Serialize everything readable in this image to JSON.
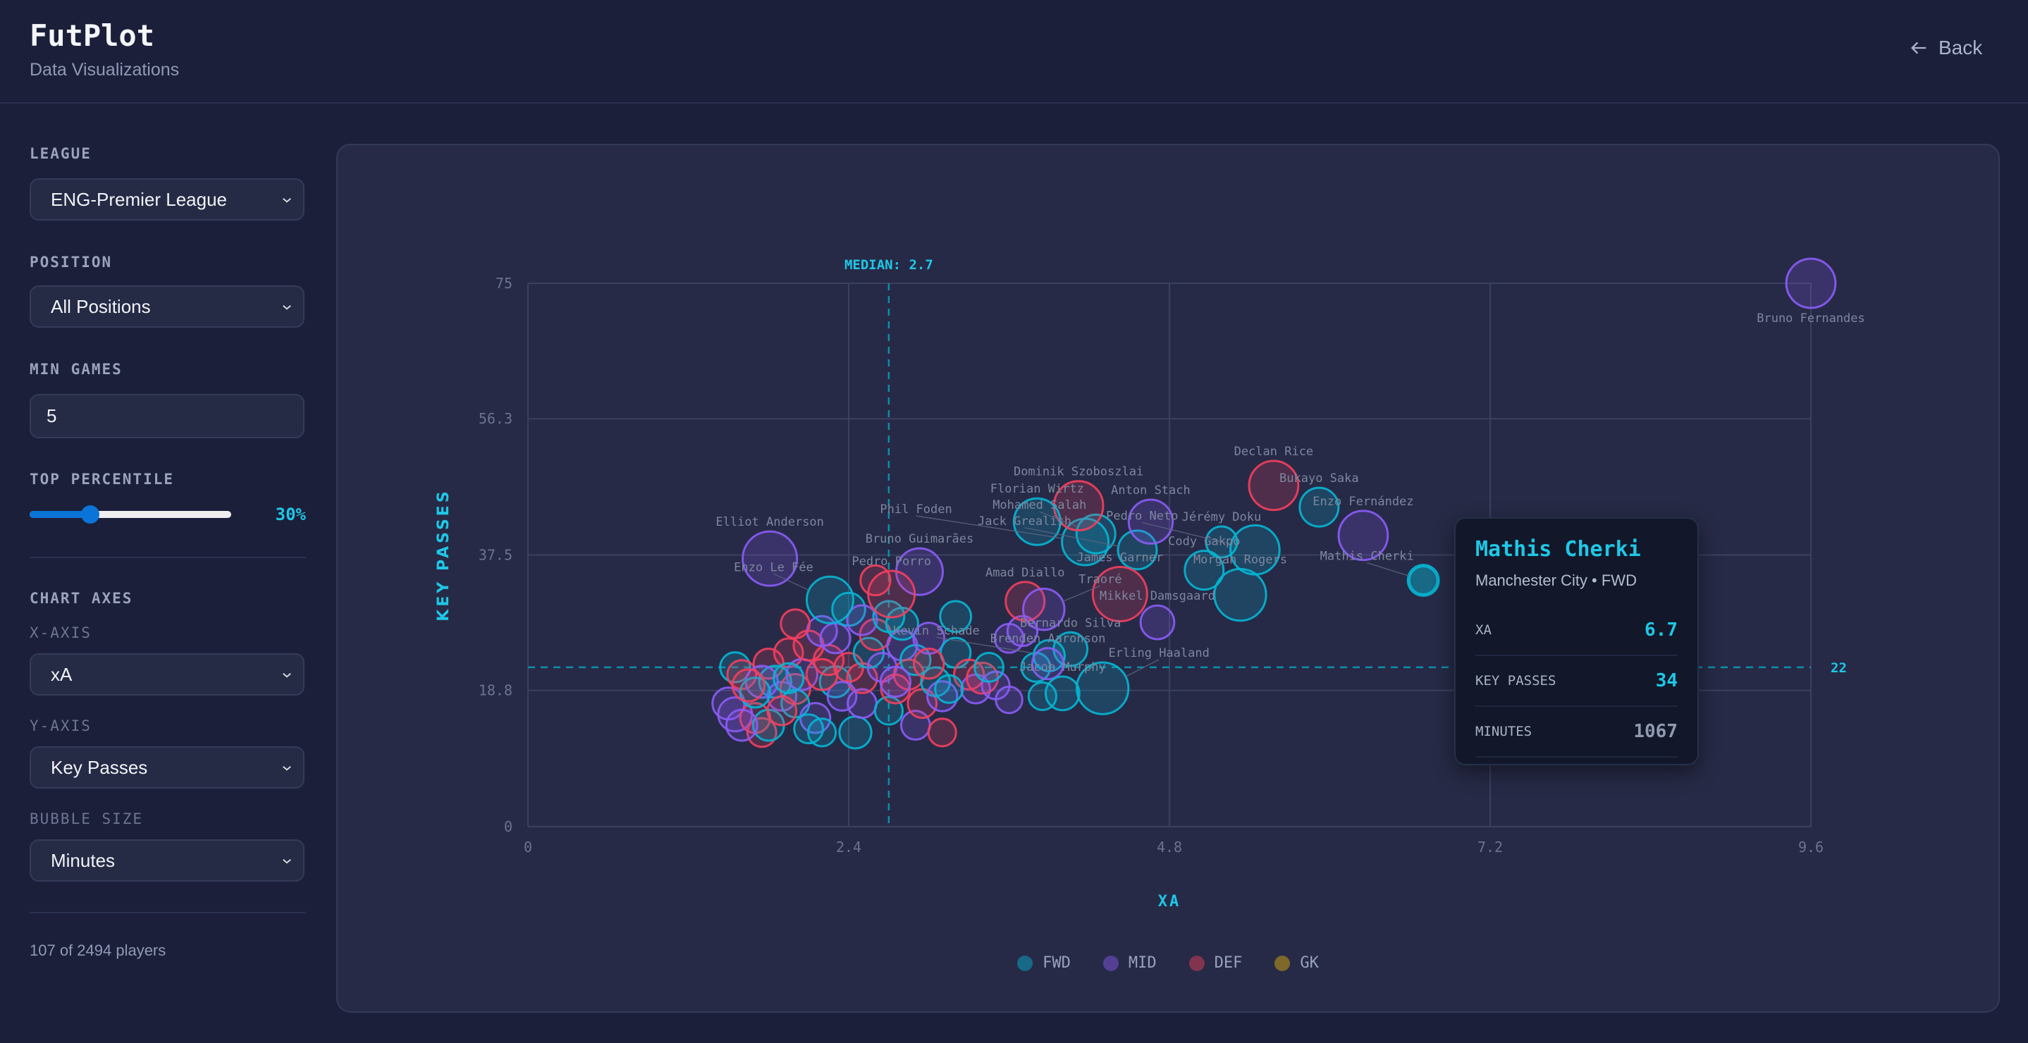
{
  "header": {
    "title": "FutPlot",
    "subtitle": "Data Visualizations",
    "back_label": "Back"
  },
  "sidebar": {
    "league_label": "LEAGUE",
    "league_value": "ENG-Premier League",
    "position_label": "POSITION",
    "position_value": "All Positions",
    "min_games_label": "MIN GAMES",
    "min_games_value": "5",
    "percentile_label": "TOP PERCENTILE",
    "percentile_value": 30,
    "percentile_text": "30%",
    "axes_label": "CHART AXES",
    "x_axis_label": "X-AXIS",
    "x_axis_value": "xA",
    "y_axis_label": "Y-AXIS",
    "y_axis_value": "Key Passes",
    "bubble_label": "BUBBLE SIZE",
    "bubble_value": "Minutes",
    "count_text": "107 of 2494 players"
  },
  "colors": {
    "FWD": "#06b6d4",
    "MID": "#8b5cf6",
    "DEF": "#f43f5e",
    "GK": "#eab308",
    "accent": "#1fc7e6"
  },
  "legend": [
    {
      "key": "FWD",
      "label": "FWD"
    },
    {
      "key": "MID",
      "label": "MID"
    },
    {
      "key": "DEF",
      "label": "DEF"
    },
    {
      "key": "GK",
      "label": "GK"
    }
  ],
  "tooltip": {
    "name": "Mathis Cherki",
    "meta": "Manchester City • FWD",
    "rows": [
      {
        "k": "XA",
        "v": "6.7"
      },
      {
        "k": "KEY PASSES",
        "v": "34"
      },
      {
        "k": "MINUTES",
        "v": "1067"
      }
    ]
  },
  "chart_data": {
    "type": "scatter",
    "xlabel": "XA",
    "ylabel": "KEY PASSES",
    "xlim": [
      0,
      9.6
    ],
    "ylim": [
      0,
      75
    ],
    "xticks": [
      "0",
      "2.4",
      "4.8",
      "7.2",
      "9.6"
    ],
    "yticks": [
      "0",
      "18.8",
      "37.5",
      "56.3",
      "75"
    ],
    "grid": true,
    "median_x": {
      "value": 2.7,
      "label": "MEDIAN: 2.7"
    },
    "median_y": {
      "value": 22,
      "label": "22"
    },
    "highlighted": "Mathis Cherki",
    "fields": [
      "name",
      "position",
      "xA",
      "key_passes",
      "minutes"
    ],
    "points": [
      [
        "Bruno Fernandes",
        "MID",
        9.6,
        75,
        1900
      ],
      [
        "Mathis Cherki",
        "FWD",
        6.7,
        34,
        1067
      ],
      [
        "Enzo Fernández",
        "MID",
        6.25,
        40.2,
        1900
      ],
      [
        "Bukayo Saka",
        "FWD",
        5.92,
        44.1,
        1180
      ],
      [
        "Declan Rice",
        "DEF",
        5.58,
        47.1,
        1900
      ],
      [
        "Jérémy Doku",
        "FWD",
        5.19,
        39.3,
        760
      ],
      [
        "Pedro Neto",
        "FWD",
        5.44,
        38.2,
        1900
      ],
      [
        "Morgan Rogers",
        "FWD",
        5.33,
        32.0,
        2100
      ],
      [
        "Cody Gakpo",
        "FWD",
        5.06,
        35.4,
        1180
      ],
      [
        "Mikkel Damsgaard",
        "MID",
        4.71,
        28.2,
        890
      ],
      [
        "Jack Grealish",
        "FWD",
        4.56,
        38.2,
        1180
      ],
      [
        "James Garner",
        "DEF",
        4.43,
        32.1,
        2320
      ],
      [
        "Anton Stach",
        "MID",
        4.66,
        42.1,
        1520
      ],
      [
        "Mohamed Salah",
        "FWD",
        4.25,
        40.4,
        1180
      ],
      [
        "Phil Foden",
        "FWD",
        4.17,
        39.3,
        1700
      ],
      [
        "Dominik Szoboszlai",
        "DEF",
        4.12,
        44.3,
        1900
      ],
      [
        "Florian Wirtz",
        "FWD",
        3.81,
        42.1,
        1700
      ],
      [
        "Elliot Anderson",
        "MID",
        1.81,
        37.0,
        2320
      ],
      [
        "Bruno Guimarães",
        "MID",
        2.93,
        35.2,
        1700
      ],
      [
        "Pedro Porro",
        "DEF",
        2.72,
        32.1,
        1700
      ],
      [
        "Enzo Le Fée",
        "FWD",
        2.26,
        31.3,
        1700
      ],
      [
        "Amad Diallo",
        "DEF",
        3.72,
        31.1,
        1180
      ],
      [
        "Traoré",
        "MID",
        3.86,
        30.0,
        1340
      ],
      [
        "Bernardo Silva",
        "FWD",
        4.06,
        24.5,
        890
      ],
      [
        "Kevin Schade",
        "FWD",
        3.9,
        23.6,
        760
      ],
      [
        "Brenden Aaronson",
        "MID",
        3.89,
        22.5,
        760
      ],
      [
        "Jacob Murphy",
        "FWD",
        4.0,
        18.4,
        890
      ],
      [
        "Erling Haaland",
        "FWD",
        4.3,
        19.1,
        2100
      ],
      [
        "",
        "FWD",
        1.55,
        22,
        700
      ],
      [
        "",
        "DEF",
        1.6,
        21,
        650
      ],
      [
        "",
        "MID",
        1.5,
        17,
        800
      ],
      [
        "",
        "MID",
        1.55,
        15.5,
        900
      ],
      [
        "",
        "DEF",
        1.7,
        15,
        700
      ],
      [
        "",
        "DEF",
        1.75,
        13,
        650
      ],
      [
        "",
        "FWD",
        1.8,
        14,
        750
      ],
      [
        "",
        "DEF",
        1.8,
        22.5,
        700
      ],
      [
        "",
        "FWD",
        1.85,
        20,
        800
      ],
      [
        "",
        "MID",
        1.9,
        18,
        650
      ],
      [
        "",
        "DEF",
        1.95,
        24,
        650
      ],
      [
        "",
        "DEF",
        2.0,
        19,
        700
      ],
      [
        "",
        "FWD",
        2.0,
        17,
        600
      ],
      [
        "",
        "MID",
        2.05,
        21,
        750
      ],
      [
        "",
        "DEF",
        2.1,
        25,
        700
      ],
      [
        "",
        "MID",
        1.75,
        20,
        800
      ],
      [
        "",
        "FWD",
        1.7,
        18.5,
        700
      ],
      [
        "",
        "DEF",
        1.9,
        16,
        650
      ],
      [
        "",
        "MID",
        2.15,
        15,
        700
      ],
      [
        "",
        "FWD",
        2.2,
        13,
        600
      ],
      [
        "",
        "FWD",
        2.3,
        20,
        750
      ],
      [
        "",
        "DEF",
        2.25,
        23,
        700
      ],
      [
        "",
        "MID",
        2.3,
        26,
        700
      ],
      [
        "",
        "DEF",
        2.4,
        22,
        650
      ],
      [
        "",
        "FWD",
        2.45,
        13,
        800
      ],
      [
        "",
        "MID",
        2.5,
        17,
        650
      ],
      [
        "",
        "DEF",
        2.5,
        20.5,
        700
      ],
      [
        "",
        "FWD",
        2.55,
        24,
        700
      ],
      [
        "",
        "DEF",
        2.6,
        26.5,
        750
      ],
      [
        "",
        "MID",
        2.65,
        22,
        650
      ],
      [
        "",
        "FWD",
        2.7,
        16,
        600
      ],
      [
        "",
        "DEF",
        2.75,
        19,
        650
      ],
      [
        "",
        "MID",
        2.8,
        25,
        700
      ],
      [
        "",
        "FWD",
        2.8,
        28,
        800
      ],
      [
        "",
        "DEF",
        2.85,
        21,
        700
      ],
      [
        "",
        "MID",
        2.9,
        14,
        650
      ],
      [
        "",
        "FWD",
        2.9,
        23,
        700
      ],
      [
        "",
        "DEF",
        2.95,
        17,
        650
      ],
      [
        "",
        "MID",
        3.0,
        26,
        750
      ],
      [
        "",
        "FWD",
        3.05,
        20,
        650
      ],
      [
        "",
        "DEF",
        3.1,
        13,
        600
      ],
      [
        "",
        "MID",
        3.1,
        18,
        700
      ],
      [
        "",
        "FWD",
        3.2,
        24,
        700
      ],
      [
        "",
        "FWD",
        3.2,
        29,
        750
      ],
      [
        "",
        "DEF",
        3.3,
        21,
        700
      ],
      [
        "",
        "MID",
        3.35,
        19,
        650
      ],
      [
        "",
        "DEF",
        3.4,
        20.5,
        750
      ],
      [
        "",
        "MID",
        3.5,
        19.5,
        600
      ],
      [
        "",
        "FWD",
        3.45,
        22,
        650
      ],
      [
        "",
        "MID",
        3.6,
        26,
        650
      ],
      [
        "",
        "MID",
        3.7,
        27,
        700
      ],
      [
        "",
        "FWD",
        2.4,
        30,
        850
      ],
      [
        "",
        "DEF",
        2.6,
        34,
        700
      ],
      [
        "",
        "MID",
        2.2,
        27,
        700
      ],
      [
        "",
        "DEF",
        2.0,
        28,
        650
      ],
      [
        "",
        "MID",
        2.5,
        28.5,
        700
      ],
      [
        "",
        "FWD",
        2.7,
        29,
        750
      ],
      [
        "",
        "DEF",
        1.65,
        19.5,
        800
      ],
      [
        "",
        "MID",
        1.6,
        14,
        750
      ],
      [
        "",
        "FWD",
        2.1,
        13.5,
        650
      ],
      [
        "",
        "DEF",
        3.0,
        22.5,
        700
      ],
      [
        "",
        "MID",
        2.35,
        18,
        650
      ],
      [
        "",
        "FWD",
        1.95,
        20.5,
        700
      ],
      [
        "",
        "DEF",
        2.2,
        21,
        750
      ],
      [
        "",
        "MID",
        2.75,
        20,
        700
      ],
      [
        "",
        "FWD",
        3.15,
        19,
        600
      ],
      [
        "",
        "MID",
        3.6,
        17.5,
        550
      ],
      [
        "",
        "FWD",
        3.8,
        22,
        650
      ],
      [
        "",
        "FWD",
        3.85,
        18,
        600
      ]
    ]
  }
}
